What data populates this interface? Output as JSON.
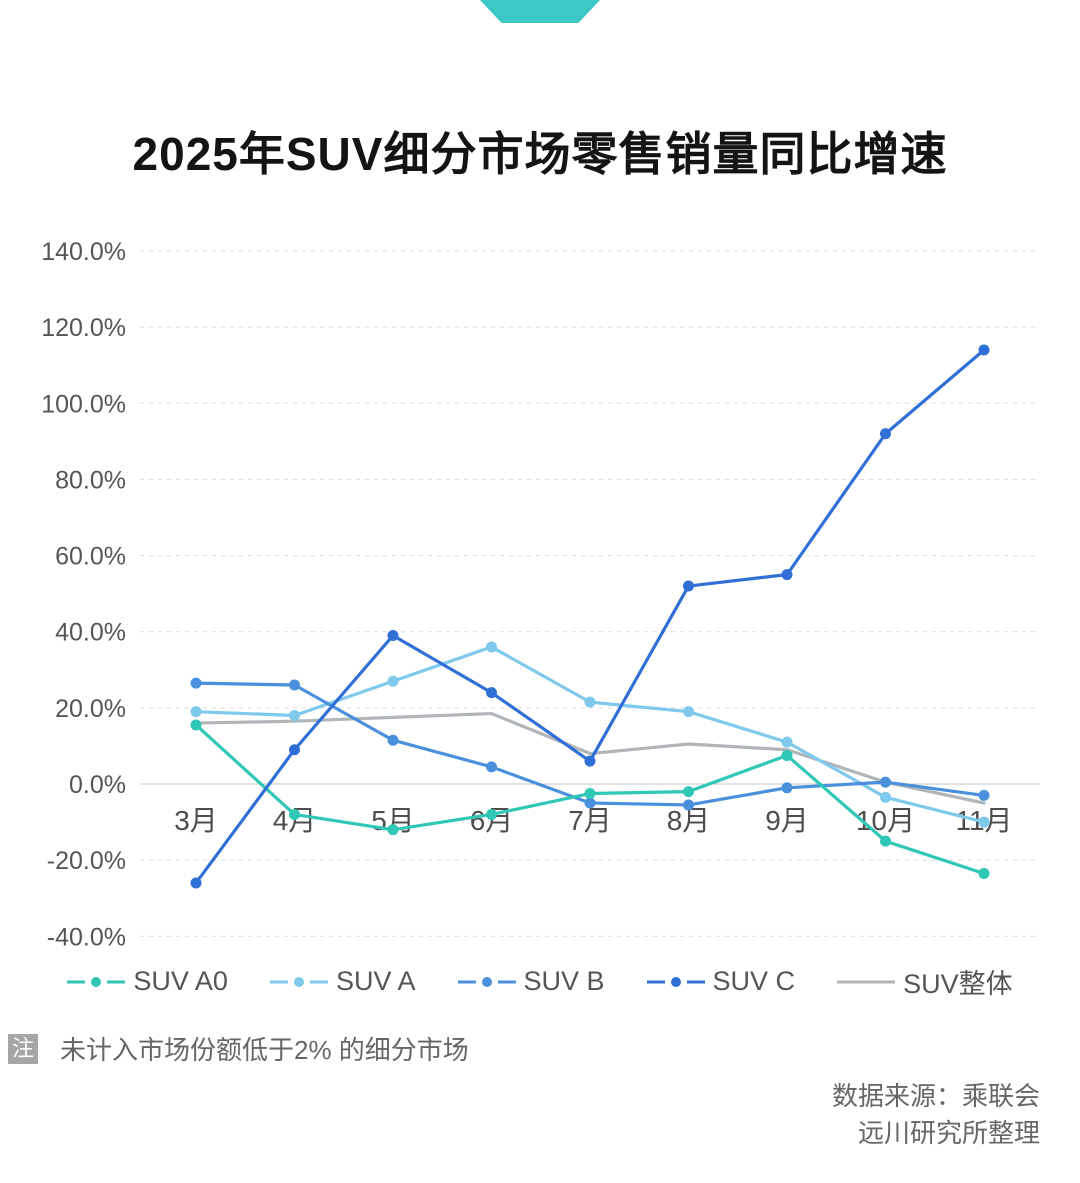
{
  "banner": {
    "color": "#3cc8c4"
  },
  "title": "2025年SUV细分市场零售销量同比增速",
  "note": {
    "badge": "注",
    "badge_bg": "#a6a6a6",
    "text": "未计入市场份额低于2% 的细分市场"
  },
  "source": {
    "line1": "数据来源：乘联会",
    "line2": "远川研究所整理"
  },
  "chart_data": {
    "type": "line",
    "title": "2025年SUV细分市场零售销量同比增速",
    "categories": [
      "3月",
      "4月",
      "5月",
      "6月",
      "7月",
      "8月",
      "9月",
      "10月",
      "11月"
    ],
    "series": [
      {
        "name": "SUV A0",
        "color": "#2fc7b5",
        "marker": true,
        "values": [
          15.5,
          -8,
          -12,
          -8,
          -2.5,
          -2,
          7.5,
          -15,
          -23.5
        ]
      },
      {
        "name": "SUV A",
        "color": "#7ec9ec",
        "marker": true,
        "values": [
          19,
          18,
          27,
          36,
          21.5,
          19,
          11,
          -3.5,
          -10
        ]
      },
      {
        "name": "SUV B",
        "color": "#4a90dd",
        "marker": true,
        "values": [
          26.5,
          26,
          11.5,
          4.5,
          -5,
          -5.5,
          -1,
          0.5,
          -3
        ]
      },
      {
        "name": "SUV C",
        "color": "#2f6fd6",
        "marker": true,
        "values": [
          -26,
          9,
          39,
          24,
          6,
          52,
          55,
          92,
          114
        ]
      },
      {
        "name": "SUV整体",
        "color": "#b0b5ba",
        "marker": false,
        "values": [
          16,
          16.5,
          17.5,
          18.5,
          8,
          10.5,
          9,
          0.5,
          -5
        ]
      }
    ],
    "ylim": [
      -40,
      140
    ],
    "ytick_values": [
      140,
      120,
      100,
      80,
      60,
      40,
      20,
      0,
      -20,
      -40
    ],
    "ytick_labels": [
      "140.0%",
      "120.0%",
      "100.0%",
      "80.0%",
      "60.0%",
      "40.0%",
      "20.0%",
      "0.0%",
      "-20.0%",
      "-40.0%"
    ],
    "grid": "dashed-horizontal",
    "zero_line": "solid",
    "legend_position": "bottom",
    "draw_order": [
      4,
      1,
      2,
      0,
      3
    ]
  }
}
